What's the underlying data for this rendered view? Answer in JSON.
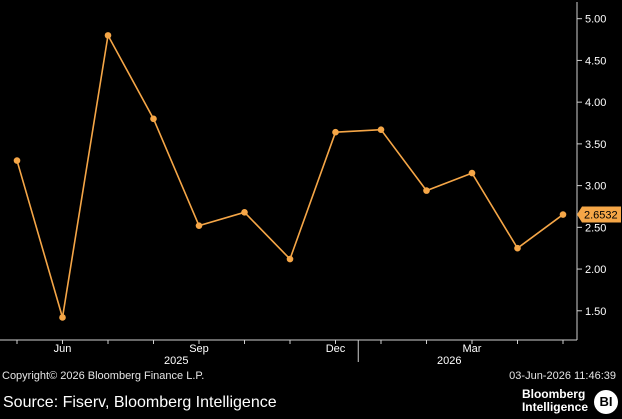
{
  "chart_data": {
    "type": "line",
    "x": [
      "2025-05",
      "2025-06",
      "2025-07",
      "2025-08",
      "2025-09",
      "2025-10",
      "2025-11",
      "2025-12",
      "2026-01",
      "2026-02",
      "2026-03",
      "2026-04",
      "2026-05"
    ],
    "values": [
      3.3,
      1.42,
      4.8,
      3.8,
      2.52,
      2.68,
      2.12,
      3.64,
      3.67,
      2.94,
      3.15,
      2.25,
      2.6532
    ],
    "ylim": [
      1.15,
      5.2
    ],
    "y_ticks": [
      "5.00",
      "4.50",
      "4.00",
      "3.50",
      "3.00",
      "2.50",
      "2.00",
      "1.50"
    ],
    "x_ticks": [
      "Jun",
      "Sep",
      "Dec",
      "Mar"
    ],
    "x_year_labels": [
      "2025",
      "2026"
    ],
    "last_value_label": "2.6532",
    "y_axis_position": "right",
    "grid": false,
    "line_color": "#f5a647",
    "marker_color": "#f5a647"
  },
  "footer": {
    "copyright": "Copyright© 2026 Bloomberg Finance L.P.",
    "timestamp": "03-Jun-2026 11:46:39",
    "source": "Source: Fiserv, Bloomberg Intelligence",
    "brand_line1": "Bloomberg",
    "brand_line2": "Intelligence",
    "brand_badge": "BI"
  }
}
